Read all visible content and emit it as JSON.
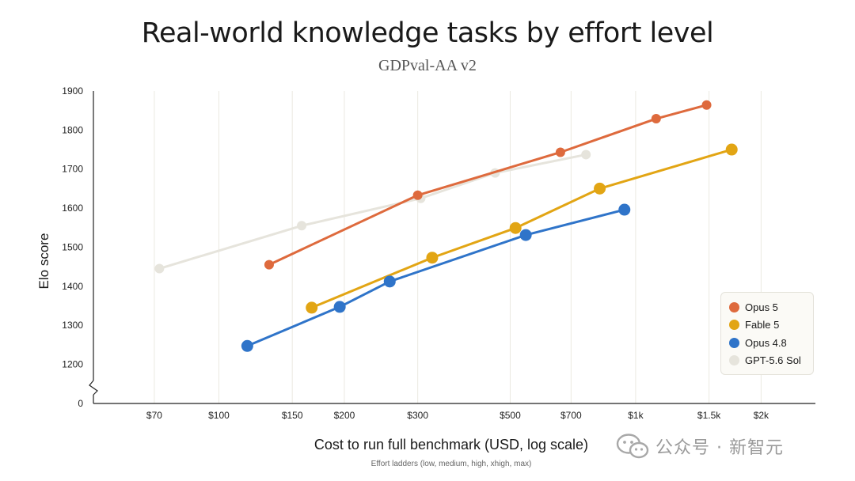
{
  "chart_data": {
    "type": "line",
    "title": "Real-world knowledge tasks by effort level",
    "subtitle": "GDPval-AA v2",
    "xlabel": "Cost to run full benchmark (USD, log scale)",
    "ylabel": "Elo score",
    "note": "Effort ladders (low, medium, high, xhigh, max)",
    "x_scale": "log",
    "xlim": [
      50,
      2700
    ],
    "ylim": [
      1130,
      1900
    ],
    "y_break_label": "0",
    "x_ticks": [
      {
        "value": 70,
        "label": "$70"
      },
      {
        "value": 100,
        "label": "$100"
      },
      {
        "value": 150,
        "label": "$150"
      },
      {
        "value": 200,
        "label": "$200"
      },
      {
        "value": 300,
        "label": "$300"
      },
      {
        "value": 500,
        "label": "$500"
      },
      {
        "value": 700,
        "label": "$700"
      },
      {
        "value": 1000,
        "label": "$1k"
      },
      {
        "value": 1500,
        "label": "$1.5k"
      },
      {
        "value": 2000,
        "label": "$2k"
      }
    ],
    "y_ticks": [
      {
        "value": 1200,
        "label": "1200"
      },
      {
        "value": 1300,
        "label": "1300"
      },
      {
        "value": 1400,
        "label": "1400"
      },
      {
        "value": 1500,
        "label": "1500"
      },
      {
        "value": 1600,
        "label": "1600"
      },
      {
        "value": 1700,
        "label": "1700"
      },
      {
        "value": 1800,
        "label": "1800"
      },
      {
        "value": 1900,
        "label": "1900"
      }
    ],
    "grid": "vertical",
    "legend_position": "lower-right",
    "series": [
      {
        "name": "GPT-5.6 Sol",
        "color": "#e6e4dc",
        "marker": "small",
        "x": [
          72,
          158,
          305,
          460,
          760
        ],
        "y": [
          1445,
          1555,
          1625,
          1690,
          1737
        ]
      },
      {
        "name": "Opus 5",
        "color": "#de6a3d",
        "marker": "small",
        "x": [
          132,
          300,
          660,
          1120,
          1480
        ],
        "y": [
          1455,
          1633,
          1743,
          1829,
          1864
        ]
      },
      {
        "name": "Fable 5",
        "color": "#e2a514",
        "marker": "large",
        "x": [
          167,
          325,
          515,
          820,
          1700
        ],
        "y": [
          1345,
          1473,
          1549,
          1650,
          1750
        ]
      },
      {
        "name": "Opus 4.8",
        "color": "#2f74c9",
        "marker": "large",
        "x": [
          117,
          195,
          257,
          545,
          940
        ],
        "y": [
          1247,
          1347,
          1412,
          1531,
          1596
        ]
      }
    ],
    "legend": [
      {
        "name": "Opus 5",
        "color": "#de6a3d"
      },
      {
        "name": "Fable 5",
        "color": "#e2a514"
      },
      {
        "name": "Opus 4.8",
        "color": "#2f74c9"
      },
      {
        "name": "GPT-5.6 Sol",
        "color": "#e6e4dc"
      }
    ]
  },
  "watermark": {
    "text": "公众号 · 新智元",
    "icon": "wechat-icon"
  }
}
